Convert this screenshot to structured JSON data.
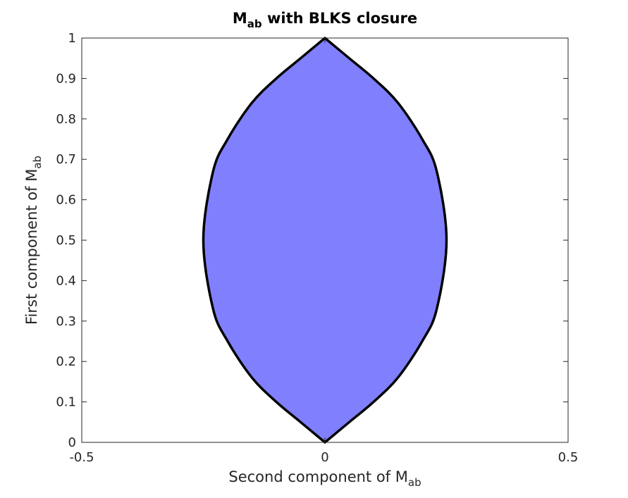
{
  "chart_data": {
    "type": "area",
    "title": {
      "main": "M",
      "sub": "ab",
      "rest": " with BLKS closure"
    },
    "xlabel": {
      "main": "Second component of M",
      "sub": "ab"
    },
    "ylabel": {
      "main": "First component of M",
      "sub": "ab"
    },
    "xlim": [
      -0.5,
      0.5
    ],
    "ylim": [
      0,
      1
    ],
    "xticks": [
      -0.5,
      0,
      0.5
    ],
    "xtick_labels": [
      "-0.5",
      "0",
      "0.5"
    ],
    "yticks": [
      0,
      0.1,
      0.2,
      0.3,
      0.4,
      0.5,
      0.6,
      0.7,
      0.8,
      0.9,
      1
    ],
    "ytick_labels": [
      "0",
      "0.1",
      "0.2",
      "0.3",
      "0.4",
      "0.5",
      "0.6",
      "0.7",
      "0.8",
      "0.9",
      "1"
    ],
    "grid": false,
    "fill_color": "#8080ff",
    "boundary_color": "#000000",
    "boundary": {
      "description_free_shape": "lens",
      "max_half_width": 0.25,
      "y_at_max_width": 0.5,
      "y_min": 0,
      "y_max": 1,
      "right_edge": [
        [
          0,
          0
        ],
        [
          0.05,
          0.05
        ],
        [
          0.1,
          0.1
        ],
        [
          0.15,
          0.16
        ],
        [
          0.2,
          0.25
        ],
        [
          0.23,
          0.33
        ],
        [
          0.25,
          0.5
        ],
        [
          0.23,
          0.67
        ],
        [
          0.2,
          0.75
        ],
        [
          0.15,
          0.84
        ],
        [
          0.1,
          0.9
        ],
        [
          0.05,
          0.95
        ],
        [
          0,
          1
        ]
      ]
    }
  }
}
